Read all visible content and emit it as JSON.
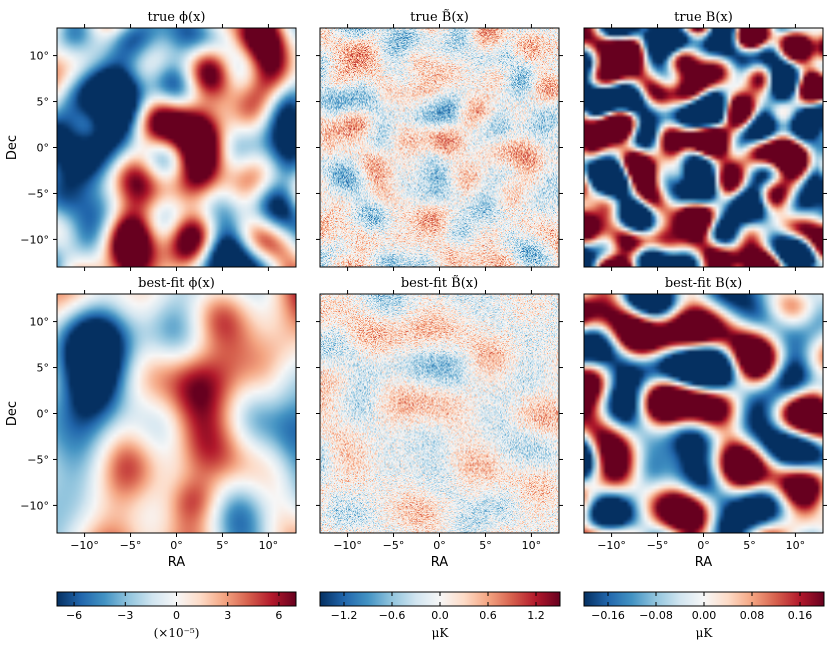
{
  "chart_data": {
    "type": "heatmap",
    "panels": [
      {
        "id": "p00",
        "title": "true ϕ(x)",
        "field": "phi_true",
        "colorbar": 0,
        "row": 0,
        "col": 0
      },
      {
        "id": "p01",
        "title": "true B̃(x)",
        "field": "btilde_true",
        "colorbar": 1,
        "row": 0,
        "col": 1
      },
      {
        "id": "p02",
        "title": "true B(x)",
        "field": "b_true",
        "colorbar": 2,
        "row": 0,
        "col": 2
      },
      {
        "id": "p10",
        "title": "best-fit ϕ(x)",
        "field": "phi_fit",
        "colorbar": 0,
        "row": 1,
        "col": 0
      },
      {
        "id": "p11",
        "title": "best-fit B̃(x)",
        "field": "btilde_fit",
        "colorbar": 1,
        "row": 1,
        "col": 1
      },
      {
        "id": "p12",
        "title": "best-fit B(x)",
        "field": "b_fit",
        "colorbar": 2,
        "row": 1,
        "col": 2
      }
    ],
    "x_axis": {
      "label": "RA",
      "range": [
        -13,
        13
      ],
      "ticks": [
        -10,
        -5,
        0,
        5,
        10
      ],
      "tick_labels": [
        "−10°",
        "−5°",
        "0°",
        "5°",
        "10°"
      ]
    },
    "y_axis": {
      "label": "Dec",
      "range": [
        -13,
        13
      ],
      "ticks": [
        10,
        5,
        0,
        -5,
        -10
      ],
      "tick_labels": [
        "10°",
        "5°",
        "0°",
        "−5°",
        "−10°"
      ]
    },
    "colorbars": [
      {
        "range": [
          -7,
          7
        ],
        "ticks": [
          -6,
          -3,
          0,
          3,
          6
        ],
        "tick_labels": [
          "−6",
          "−3",
          "0",
          "3",
          "6"
        ],
        "label": "(×10⁻⁵)"
      },
      {
        "range": [
          -1.5,
          1.5
        ],
        "ticks": [
          -1.2,
          -0.6,
          0,
          0.6,
          1.2
        ],
        "tick_labels": [
          "−1.2",
          "−0.6",
          "0.0",
          "0.6",
          "1.2"
        ],
        "label": "μK"
      },
      {
        "range": [
          -0.2,
          0.2
        ],
        "ticks": [
          -0.16,
          -0.08,
          0,
          0.08,
          0.16
        ],
        "tick_labels": [
          "−0.16",
          "−0.08",
          "0.00",
          "0.08",
          "0.16"
        ],
        "label": "μK"
      }
    ],
    "colormap": "RdBu_r",
    "colors": {
      "low": "#053061",
      "mid": "#f7f7f7",
      "high": "#67001f"
    }
  }
}
